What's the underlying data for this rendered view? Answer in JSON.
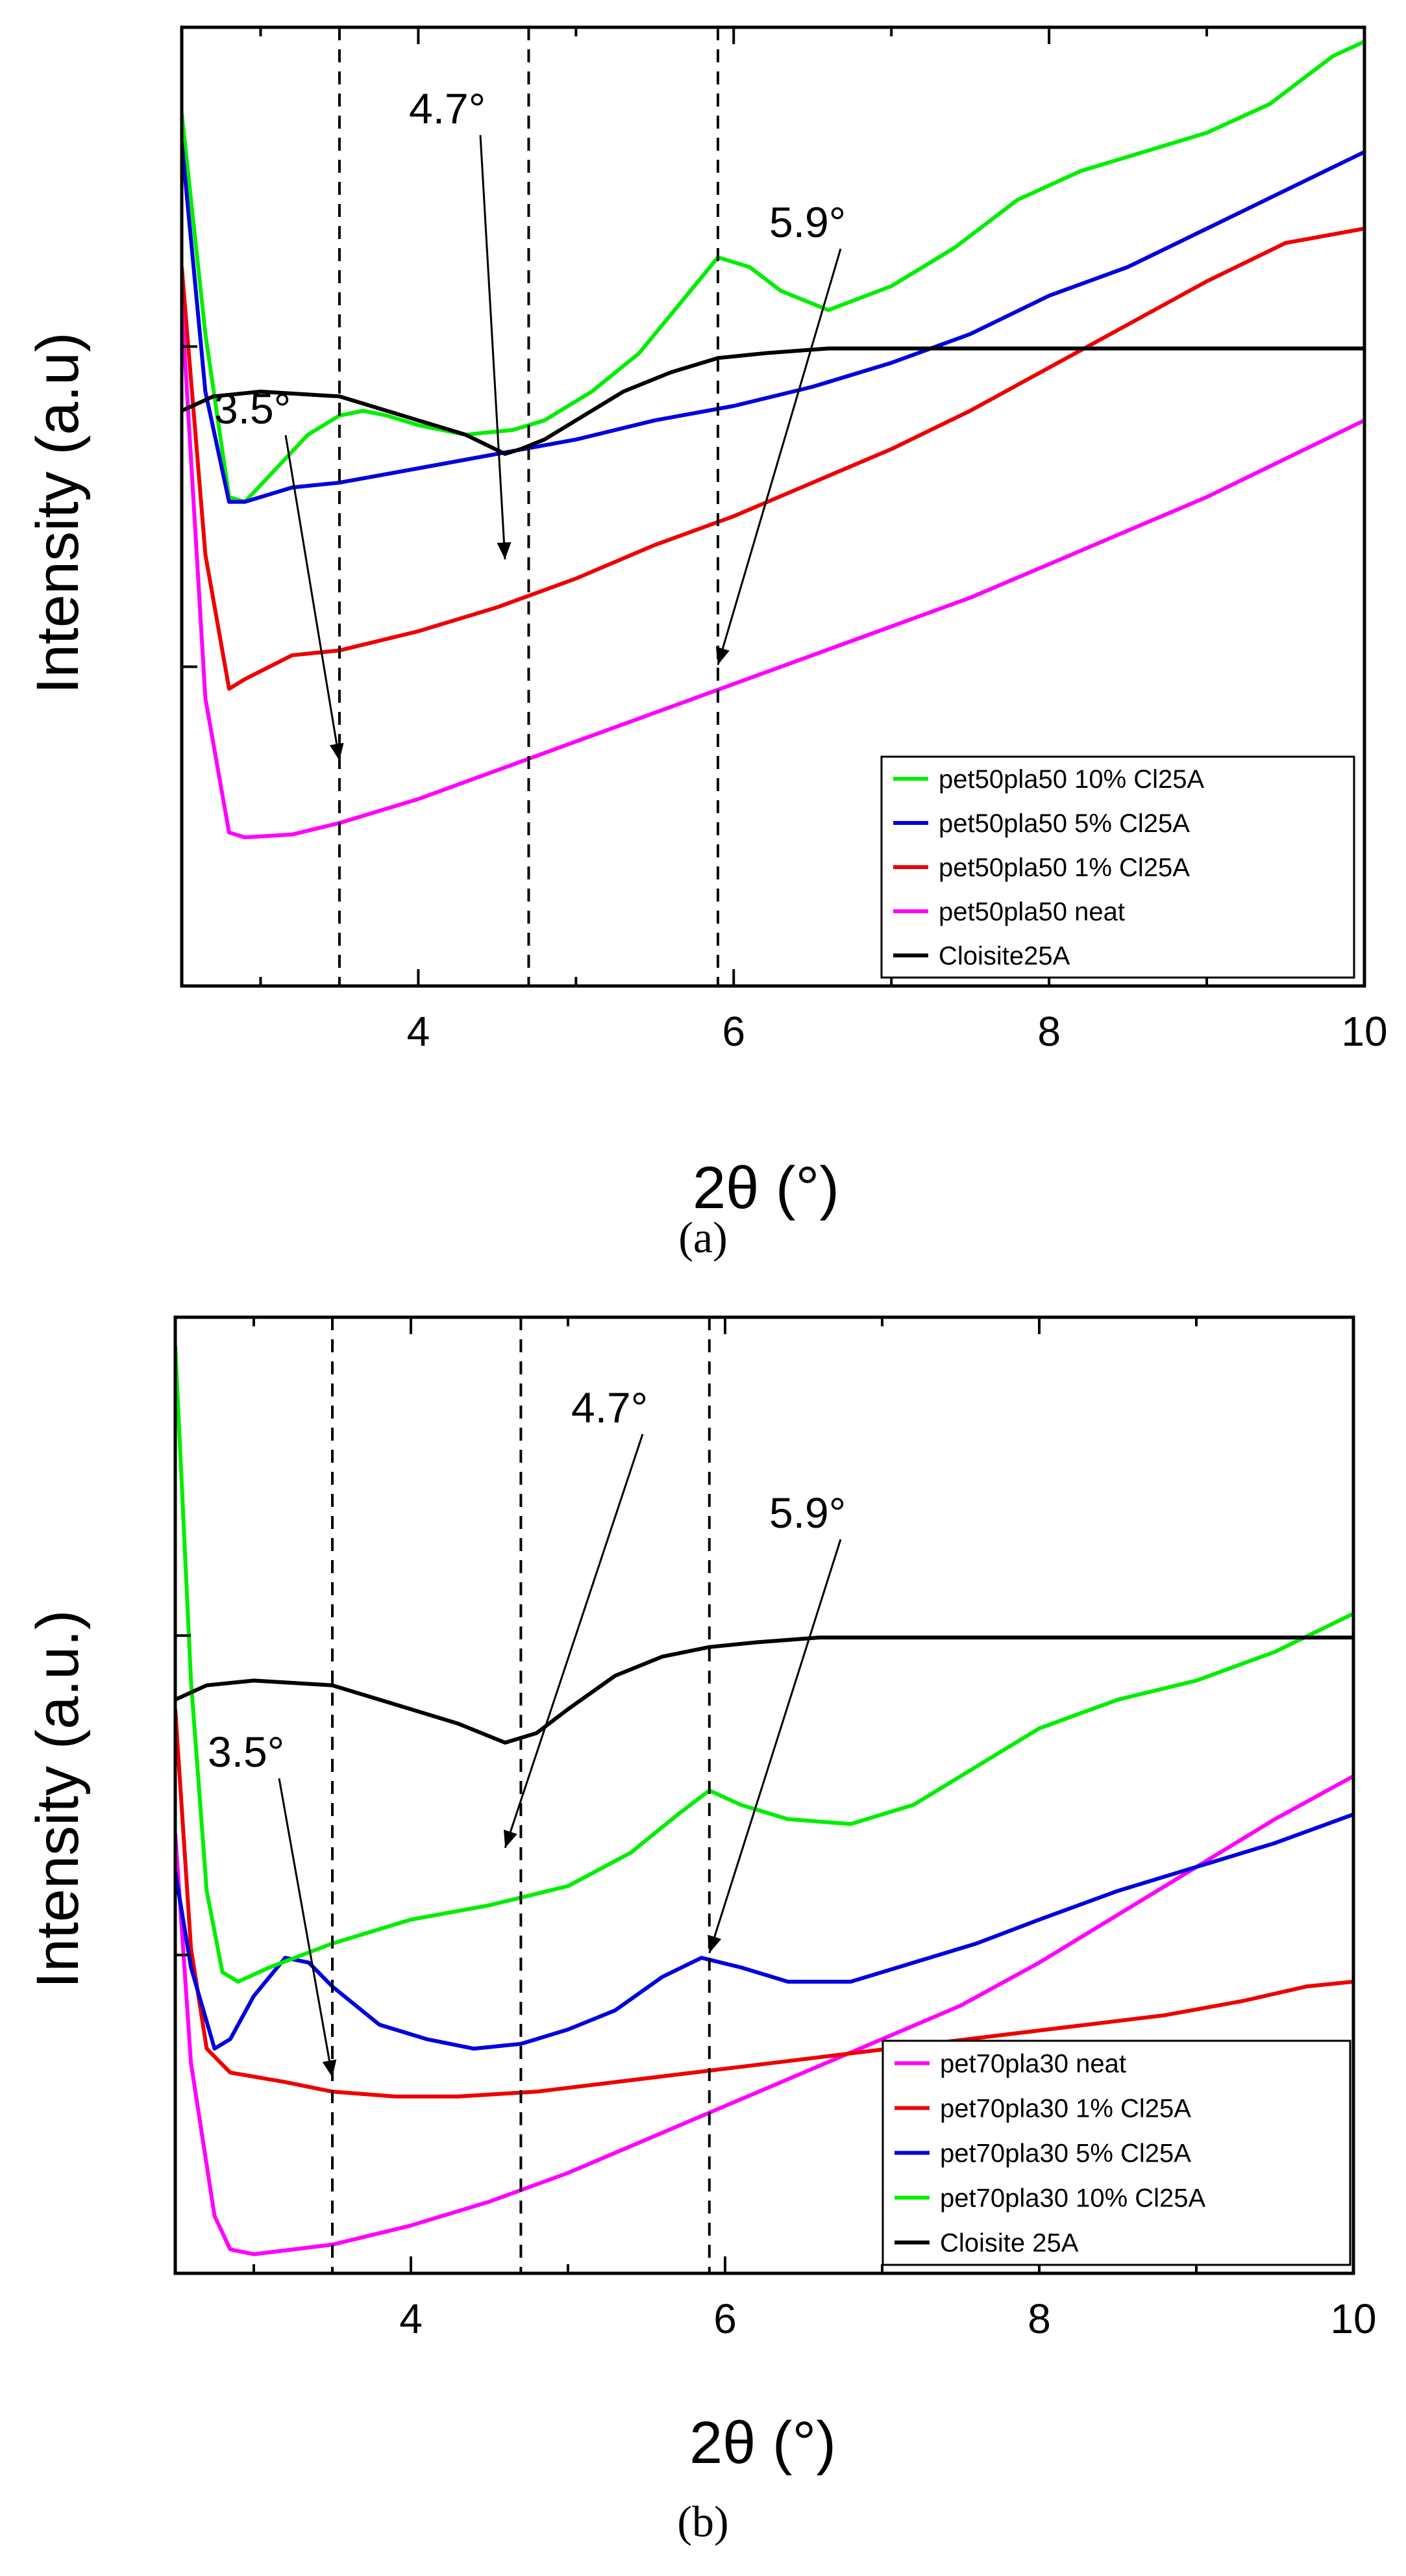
{
  "chart_data": [
    {
      "type": "line",
      "panel_label": "(a)",
      "xlabel": "2θ (°)",
      "ylabel": "Intensity (a.u)",
      "xlim": [
        2.5,
        10
      ],
      "ylim": [
        0,
        1
      ],
      "xticks": [
        4,
        6,
        8,
        10
      ],
      "y_ticks_unlabeled": true,
      "legend_position": "bottom-right",
      "dashed_lines_x": [
        3.5,
        4.7,
        5.9
      ],
      "annotations": [
        {
          "text": "3.5°",
          "target_x": 3.5,
          "target_y": 0.765
        },
        {
          "text": "4.7°",
          "target_x": 4.55,
          "target_y": 0.555
        },
        {
          "text": "5.9°",
          "target_x": 5.9,
          "target_y": 0.665
        }
      ],
      "series": [
        {
          "name": "pet50pla50 10% Cl25A",
          "color": "#00ee00",
          "x": [
            2.5,
            2.65,
            2.8,
            2.9,
            3.1,
            3.3,
            3.5,
            3.65,
            3.8,
            4.0,
            4.3,
            4.6,
            4.8,
            5.1,
            5.4,
            5.7,
            5.9,
            6.1,
            6.3,
            6.6,
            7.0,
            7.4,
            7.8,
            8.2,
            8.6,
            9.0,
            9.4,
            9.8,
            10.0
          ],
          "y": [
            0.91,
            0.68,
            0.51,
            0.505,
            0.54,
            0.575,
            0.595,
            0.6,
            0.595,
            0.585,
            0.575,
            0.58,
            0.59,
            0.62,
            0.66,
            0.72,
            0.76,
            0.75,
            0.725,
            0.705,
            0.73,
            0.77,
            0.82,
            0.85,
            0.87,
            0.89,
            0.92,
            0.97,
            0.985
          ]
        },
        {
          "name": "pet50pla50 5% Cl25A",
          "color": "#0000dd",
          "x": [
            2.5,
            2.65,
            2.8,
            2.9,
            3.2,
            3.5,
            4.0,
            4.5,
            5.0,
            5.5,
            6.0,
            6.5,
            7.0,
            7.5,
            8.0,
            8.5,
            9.0,
            9.5,
            10.0
          ],
          "y": [
            0.88,
            0.62,
            0.505,
            0.505,
            0.52,
            0.525,
            0.54,
            0.555,
            0.57,
            0.59,
            0.605,
            0.625,
            0.65,
            0.68,
            0.72,
            0.75,
            0.79,
            0.83,
            0.87
          ]
        },
        {
          "name": "pet50pla50 1% Cl25A",
          "color": "#ee0000",
          "x": [
            2.5,
            2.65,
            2.8,
            2.9,
            3.2,
            3.5,
            4.0,
            4.5,
            5.0,
            5.5,
            6.0,
            6.5,
            7.0,
            7.5,
            8.0,
            8.5,
            9.0,
            9.5,
            10.0
          ],
          "y": [
            0.75,
            0.45,
            0.31,
            0.32,
            0.345,
            0.35,
            0.37,
            0.395,
            0.425,
            0.46,
            0.49,
            0.525,
            0.56,
            0.6,
            0.645,
            0.69,
            0.735,
            0.775,
            0.79
          ]
        },
        {
          "name": "pet50pla50 neat",
          "color": "#ff00ff",
          "x": [
            2.5,
            2.65,
            2.8,
            2.9,
            3.2,
            3.5,
            4.0,
            4.5,
            5.0,
            5.5,
            6.0,
            6.5,
            7.0,
            7.5,
            8.0,
            8.5,
            9.0,
            9.5,
            10.0
          ],
          "y": [
            0.71,
            0.3,
            0.16,
            0.155,
            0.158,
            0.17,
            0.195,
            0.225,
            0.255,
            0.285,
            0.315,
            0.345,
            0.375,
            0.405,
            0.44,
            0.475,
            0.51,
            0.55,
            0.59
          ]
        },
        {
          "name": "Cloisite25A",
          "color": "#000000",
          "x": [
            2.5,
            2.7,
            3.0,
            3.5,
            4.0,
            4.3,
            4.55,
            4.65,
            4.8,
            5.0,
            5.3,
            5.6,
            5.9,
            6.2,
            6.6,
            7.0,
            8.0,
            9.0,
            10.0
          ],
          "y": [
            0.6,
            0.615,
            0.62,
            0.615,
            0.59,
            0.575,
            0.555,
            0.56,
            0.57,
            0.59,
            0.62,
            0.64,
            0.655,
            0.66,
            0.665,
            0.665,
            0.665,
            0.665,
            0.665
          ]
        }
      ]
    },
    {
      "type": "line",
      "panel_label": "(b)",
      "xlabel": "2θ (°)",
      "ylabel": "Intensity (a.u.)",
      "xlim": [
        2.5,
        10
      ],
      "ylim": [
        0,
        1
      ],
      "xticks": [
        4,
        6,
        8,
        10
      ],
      "y_ticks_unlabeled": true,
      "legend_position": "bottom-right",
      "dashed_lines_x": [
        3.5,
        4.7,
        5.9
      ],
      "annotations": [
        {
          "text": "3.5°",
          "target_x": 3.5,
          "target_y": 0.795
        },
        {
          "text": "4.7°",
          "target_x": 4.6,
          "target_y": 0.555
        },
        {
          "text": "5.9°",
          "target_x": 5.9,
          "target_y": 0.665
        }
      ],
      "series": [
        {
          "name": "pet70pla30 neat",
          "color": "#ff00ff",
          "x": [
            2.5,
            2.6,
            2.75,
            2.85,
            3.0,
            3.5,
            4.0,
            4.5,
            5.0,
            5.5,
            6.0,
            6.5,
            7.0,
            7.5,
            8.0,
            8.5,
            9.0,
            9.5,
            10.0
          ],
          "y": [
            0.46,
            0.22,
            0.06,
            0.025,
            0.02,
            0.03,
            0.05,
            0.075,
            0.105,
            0.14,
            0.175,
            0.21,
            0.245,
            0.28,
            0.325,
            0.375,
            0.425,
            0.475,
            0.52
          ]
        },
        {
          "name": "pet70pla30 1% Cl25A",
          "color": "#ee0000",
          "x": [
            2.5,
            2.6,
            2.7,
            2.85,
            3.2,
            3.5,
            3.9,
            4.3,
            4.8,
            5.3,
            5.8,
            6.3,
            6.8,
            7.3,
            7.8,
            8.3,
            8.8,
            9.3,
            9.7,
            10.0
          ],
          "y": [
            0.59,
            0.34,
            0.235,
            0.21,
            0.2,
            0.19,
            0.185,
            0.185,
            0.19,
            0.2,
            0.21,
            0.22,
            0.23,
            0.24,
            0.25,
            0.26,
            0.27,
            0.285,
            0.3,
            0.305
          ]
        },
        {
          "name": "pet70pla30 5% Cl25A",
          "color": "#0000dd",
          "x": [
            2.5,
            2.6,
            2.75,
            2.85,
            3.0,
            3.2,
            3.35,
            3.5,
            3.8,
            4.1,
            4.4,
            4.7,
            5.0,
            5.3,
            5.6,
            5.85,
            6.1,
            6.4,
            6.8,
            7.2,
            7.6,
            8.0,
            8.5,
            9.0,
            9.5,
            10.0
          ],
          "y": [
            0.42,
            0.32,
            0.235,
            0.245,
            0.29,
            0.33,
            0.325,
            0.3,
            0.26,
            0.245,
            0.235,
            0.24,
            0.255,
            0.275,
            0.31,
            0.33,
            0.32,
            0.305,
            0.305,
            0.325,
            0.345,
            0.37,
            0.4,
            0.425,
            0.45,
            0.48
          ]
        },
        {
          "name": "pet70pla30 10% Cl25A",
          "color": "#00ee00",
          "x": [
            2.5,
            2.6,
            2.7,
            2.8,
            2.9,
            3.1,
            3.5,
            4.0,
            4.5,
            5.0,
            5.4,
            5.7,
            5.9,
            6.1,
            6.4,
            6.8,
            7.2,
            7.6,
            8.0,
            8.5,
            9.0,
            9.5,
            10.0
          ],
          "y": [
            0.97,
            0.62,
            0.4,
            0.315,
            0.305,
            0.32,
            0.345,
            0.37,
            0.385,
            0.405,
            0.44,
            0.48,
            0.505,
            0.49,
            0.475,
            0.47,
            0.49,
            0.53,
            0.57,
            0.6,
            0.62,
            0.65,
            0.69
          ]
        },
        {
          "name": "Cloisite 25A",
          "color": "#000000",
          "x": [
            2.5,
            2.7,
            3.0,
            3.5,
            4.0,
            4.3,
            4.6,
            4.8,
            5.0,
            5.3,
            5.6,
            5.9,
            6.2,
            6.6,
            7.0,
            8.0,
            9.0,
            10.0
          ],
          "y": [
            0.6,
            0.615,
            0.62,
            0.615,
            0.59,
            0.575,
            0.555,
            0.565,
            0.59,
            0.625,
            0.645,
            0.655,
            0.66,
            0.665,
            0.665,
            0.665,
            0.665,
            0.665
          ]
        }
      ]
    }
  ]
}
